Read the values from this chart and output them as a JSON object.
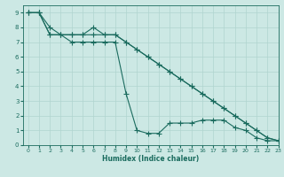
{
  "xlabel": "Humidex (Indice chaleur)",
  "ylabel": "",
  "bg_color": "#cce8e4",
  "grid_color": "#b0d4cf",
  "line_color": "#1a6b5e",
  "xlim": [
    -0.5,
    23
  ],
  "ylim": [
    0,
    9.5
  ],
  "xticks": [
    0,
    1,
    2,
    3,
    4,
    5,
    6,
    7,
    8,
    9,
    10,
    11,
    12,
    13,
    14,
    15,
    16,
    17,
    18,
    19,
    20,
    21,
    22,
    23
  ],
  "yticks": [
    0,
    1,
    2,
    3,
    4,
    5,
    6,
    7,
    8,
    9
  ],
  "series": [
    {
      "x": [
        0,
        1,
        2,
        3,
        4,
        5,
        6,
        7,
        8,
        9,
        10,
        11,
        12,
        13,
        14,
        15,
        16,
        17,
        18,
        19,
        20,
        21,
        22,
        23
      ],
      "y": [
        9,
        9,
        8,
        7.5,
        7.5,
        7.5,
        7.5,
        7.5,
        7.5,
        7,
        6.5,
        6,
        5.5,
        5,
        4.5,
        4,
        3.5,
        3,
        2.5,
        2,
        1.5,
        1,
        0.5,
        0.3
      ]
    },
    {
      "x": [
        0,
        1,
        2,
        3,
        4,
        5,
        6,
        7,
        8,
        9,
        10,
        11,
        12,
        13,
        14,
        15,
        16,
        17,
        18,
        19,
        20,
        21,
        22,
        23
      ],
      "y": [
        9,
        9,
        7.5,
        7.5,
        7.5,
        7.5,
        8,
        7.5,
        7.5,
        7,
        6.5,
        6,
        5.5,
        5,
        4.5,
        4,
        3.5,
        3,
        2.5,
        2,
        1.5,
        1,
        0.5,
        0.3
      ]
    },
    {
      "x": [
        0,
        1,
        2,
        3,
        4,
        5,
        6,
        7,
        8,
        9,
        10,
        11,
        12,
        13,
        14,
        15,
        16,
        17,
        18,
        19,
        20,
        21,
        22,
        23
      ],
      "y": [
        9,
        9,
        7.5,
        7.5,
        7,
        7,
        7,
        7,
        7,
        3.5,
        1,
        0.8,
        0.8,
        1.5,
        1.5,
        1.5,
        1.7,
        1.7,
        1.7,
        1.2,
        1,
        0.5,
        0.3,
        0.3
      ]
    }
  ],
  "marker": "+",
  "marker_size": 4.0,
  "linewidth": 0.8
}
